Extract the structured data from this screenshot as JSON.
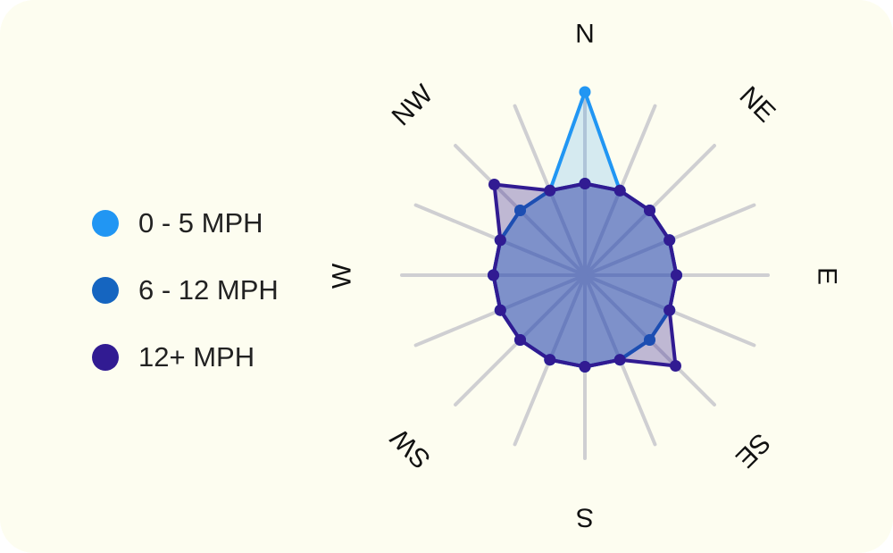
{
  "chart_data": {
    "type": "radar",
    "directions": [
      "N",
      "",
      "",
      "",
      "NE",
      "",
      "",
      "",
      "E",
      "",
      "",
      "",
      "SE",
      "",
      "",
      "",
      "S",
      "",
      "",
      "",
      "SW",
      "",
      "",
      "",
      "W",
      "",
      "",
      "",
      "NW",
      "",
      "",
      ""
    ],
    "axis_count": 16,
    "rmax": 10,
    "series": [
      {
        "name": "0 - 5 MPH",
        "color": "#2196f3",
        "values": [
          10,
          5,
          5,
          5,
          5,
          5,
          5,
          5,
          5,
          5,
          5,
          5,
          5,
          5,
          5,
          5
        ]
      },
      {
        "name": "6 - 12 MPH",
        "color": "#1565c0",
        "values": [
          5,
          5,
          5,
          5,
          5,
          5,
          5,
          5,
          5,
          5,
          5,
          5,
          5,
          5,
          5,
          5
        ]
      },
      {
        "name": "12+ MPH",
        "color": "#311b92",
        "values": [
          5,
          5,
          5,
          5,
          5,
          5,
          7,
          5,
          5,
          5,
          5,
          5,
          5,
          5,
          7,
          5
        ]
      }
    ],
    "legend_position": "left"
  }
}
